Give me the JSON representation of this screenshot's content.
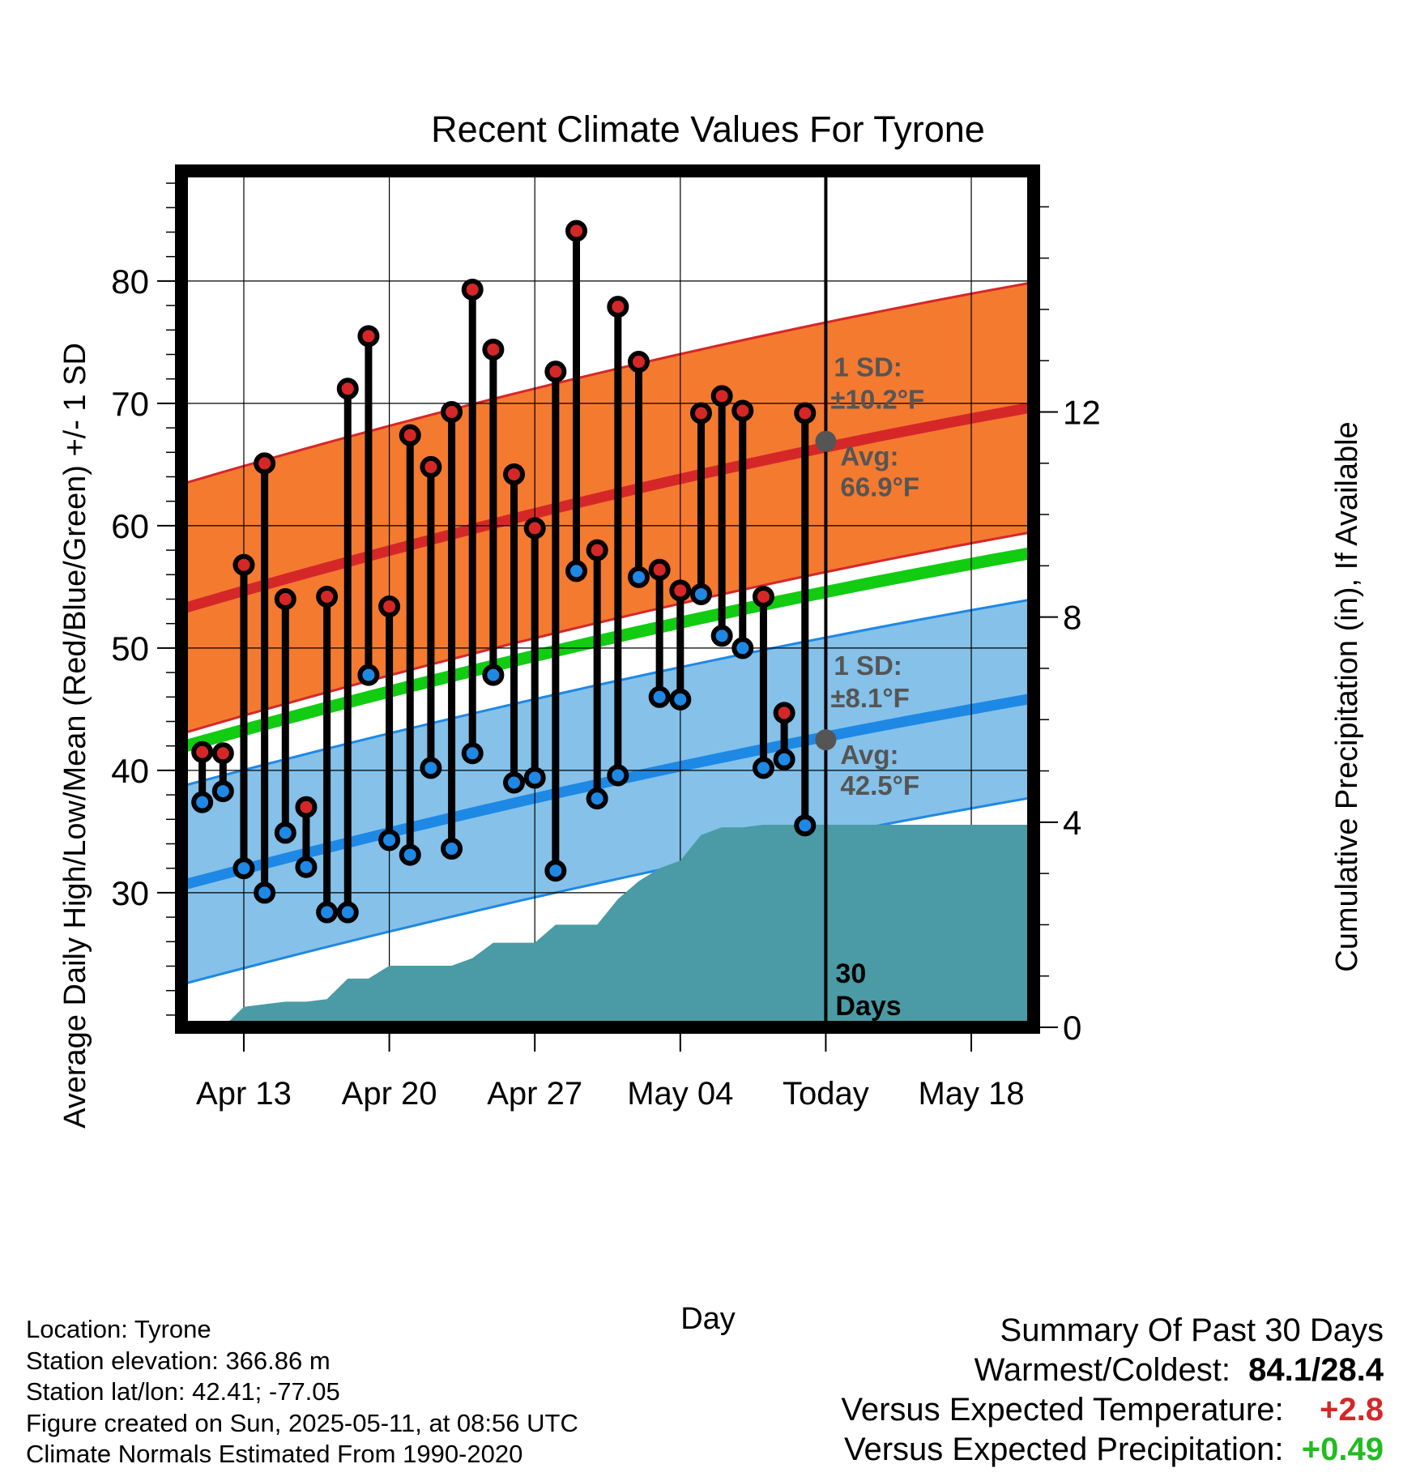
{
  "chart_data": {
    "type": "line",
    "title": "Recent Climate Values For Tyrone",
    "xlabel": "Day",
    "ylabel": "Average Daily High/Low/Mean (Red/Blue/Green) +/- 1 SD",
    "y2label": "Cumulative Precipitation (in), If Available",
    "x_tick_labels": [
      "Apr 13",
      "Apr 20",
      "Apr 27",
      "May 04",
      "Today",
      "May 18"
    ],
    "x_tick_dates": [
      "2025-04-13",
      "2025-04-20",
      "2025-04-27",
      "2025-05-04",
      "2025-05-11",
      "2025-05-18"
    ],
    "xlim": [
      "2025-04-10",
      "2025-05-21"
    ],
    "ylim": [
      19,
      89
    ],
    "y_ticks": [
      30,
      40,
      50,
      60,
      70,
      80
    ],
    "y2lim": [
      0,
      16.7
    ],
    "y2_ticks": [
      0,
      4,
      8,
      12
    ],
    "today": "2025-05-11",
    "today_label": "30\nDays",
    "normals": {
      "high_mean": {
        "start": 53.2,
        "end": 69.7
      },
      "high_sd": 10.2,
      "low_mean": {
        "start": 30.6,
        "end": 45.9
      },
      "low_sd": 8.1,
      "daily_mean": {
        "start": 41.9,
        "end": 57.8
      }
    },
    "today_markers": [
      {
        "label": "1 SD:",
        "value": "±10.2°F",
        "avg_label": "Avg:",
        "avg_value": "66.9°F",
        "avg": 66.9
      },
      {
        "label": "1 SD:",
        "value": "±8.1°F",
        "avg_label": "Avg:",
        "avg_value": "42.5°F",
        "avg": 42.5
      }
    ],
    "series": [
      {
        "name": "High",
        "color": "#d62728",
        "dates": [
          "2025-04-11",
          "2025-04-12",
          "2025-04-13",
          "2025-04-14",
          "2025-04-15",
          "2025-04-16",
          "2025-04-17",
          "2025-04-18",
          "2025-04-19",
          "2025-04-20",
          "2025-04-21",
          "2025-04-22",
          "2025-04-23",
          "2025-04-24",
          "2025-04-25",
          "2025-04-26",
          "2025-04-27",
          "2025-04-28",
          "2025-04-29",
          "2025-04-30",
          "2025-05-01",
          "2025-05-02",
          "2025-05-03",
          "2025-05-04",
          "2025-05-05",
          "2025-05-06",
          "2025-05-07",
          "2025-05-08",
          "2025-05-09",
          "2025-05-10"
        ],
        "values": [
          41.5,
          41.4,
          56.8,
          65.1,
          54.0,
          37.0,
          54.2,
          71.2,
          75.5,
          53.4,
          67.4,
          64.8,
          69.3,
          79.3,
          74.4,
          64.2,
          59.8,
          72.6,
          84.1,
          58.0,
          77.9,
          73.4,
          56.4,
          54.7,
          69.2,
          70.6,
          69.4,
          54.2,
          44.7,
          69.2
        ]
      },
      {
        "name": "Low",
        "color": "#1e88e5",
        "values": [
          37.4,
          38.3,
          32.0,
          30.0,
          34.9,
          32.1,
          28.4,
          28.4,
          47.8,
          34.3,
          33.1,
          40.2,
          33.6,
          41.4,
          47.8,
          39.0,
          39.4,
          31.8,
          56.3,
          37.7,
          39.6,
          55.8,
          46.0,
          45.8,
          54.4,
          51.0,
          50.0,
          40.2,
          40.9,
          35.5
        ]
      },
      {
        "name": "Cumulative Precipitation",
        "color": "#4a9ba5",
        "values": [
          0,
          0,
          0.4,
          0.45,
          0.5,
          0.5,
          0.55,
          0.95,
          0.95,
          1.2,
          1.2,
          1.2,
          1.2,
          1.35,
          1.65,
          1.65,
          1.65,
          2.0,
          2.0,
          2.0,
          2.5,
          2.85,
          3.1,
          3.25,
          3.75,
          3.9,
          3.9,
          3.95,
          3.95,
          3.95
        ]
      }
    ]
  },
  "footer": {
    "location": "Location: Tyrone",
    "elevation": "Station elevation: 366.86 m",
    "latlon": "Station lat/lon: 42.41; -77.05",
    "created": "Figure created on Sun, 2025-05-11, at 08:56 UTC",
    "normals": "Climate Normals Estimated From 1990-2020"
  },
  "summary": {
    "title": "Summary Of Past 30 Days",
    "warm_cold_label": "Warmest/Coldest:",
    "warm_cold_value": "84.1/28.4",
    "temp_label": "Versus Expected Temperature:",
    "temp_value": "+2.8",
    "temp_color": "#d62728",
    "precip_label": "Versus Expected Precipitation:",
    "precip_value": "+0.49",
    "precip_color": "#22bb22"
  }
}
